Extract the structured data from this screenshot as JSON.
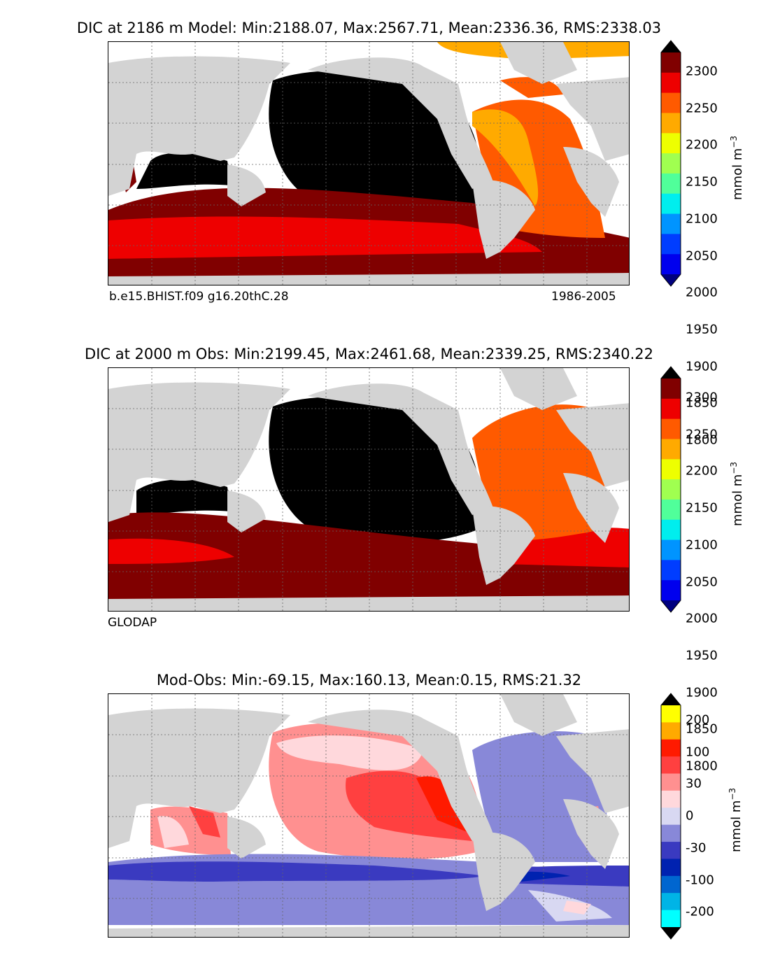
{
  "panels": [
    {
      "title": "DIC at 2186 m Model: Min:2188.07, Max:2567.71, Mean:2336.36, RMS:2338.03",
      "caption_left": "b.e15.BHIST.f09 g16.20thC.28",
      "caption_right": "1986-2005",
      "colorbar_units_text": "mmol m",
      "colorbar_units_sup": "−3",
      "colorbar_ticks": [
        "2300",
        "2250",
        "2200",
        "2150",
        "2100",
        "2050",
        "2000",
        "1950",
        "1900",
        "1850",
        "1800"
      ],
      "colorbar_colors": [
        "#000000",
        "#800000",
        "#ee0000",
        "#ff5a00",
        "#ffaa00",
        "#eeff00",
        "#a0ff50",
        "#50ff9a",
        "#00eeee",
        "#0094ff",
        "#003dff",
        "#0000ee",
        "#00007f"
      ]
    },
    {
      "title": "DIC at 2000 m Obs: Min:2199.45, Max:2461.68, Mean:2339.25, RMS:2340.22",
      "caption_left": "GLODAP",
      "caption_right": "",
      "colorbar_units_text": "mmol m",
      "colorbar_units_sup": "−3",
      "colorbar_ticks": [
        "2300",
        "2250",
        "2200",
        "2150",
        "2100",
        "2050",
        "2000",
        "1950",
        "1900",
        "1850",
        "1800"
      ],
      "colorbar_colors": [
        "#000000",
        "#800000",
        "#ee0000",
        "#ff5a00",
        "#ffaa00",
        "#eeff00",
        "#a0ff50",
        "#50ff9a",
        "#00eeee",
        "#0094ff",
        "#003dff",
        "#0000ee",
        "#00007f"
      ]
    },
    {
      "title": "Mod-Obs: Min:-69.15, Max:160.13, Mean:0.15, RMS:21.32",
      "caption_left": "",
      "caption_right": "",
      "colorbar_units_text": "mmol m",
      "colorbar_units_sup": "−3",
      "colorbar_ticks": [
        "200",
        "100",
        "30",
        "0",
        "-30",
        "-100",
        "-200"
      ],
      "colorbar_colors": [
        "#000000",
        "#ffff00",
        "#ffaa00",
        "#ff1a00",
        "#ff4040",
        "#ff9090",
        "#ffd8dc",
        "#d8d8f2",
        "#8888d8",
        "#3a3ac0",
        "#0022b0",
        "#0066d0",
        "#00b4e6",
        "#00ffff",
        "#000000"
      ]
    }
  ],
  "colors": {
    "land": "#d3d3d3",
    "no_data": "#ffffff",
    "grid": "#666666"
  }
}
